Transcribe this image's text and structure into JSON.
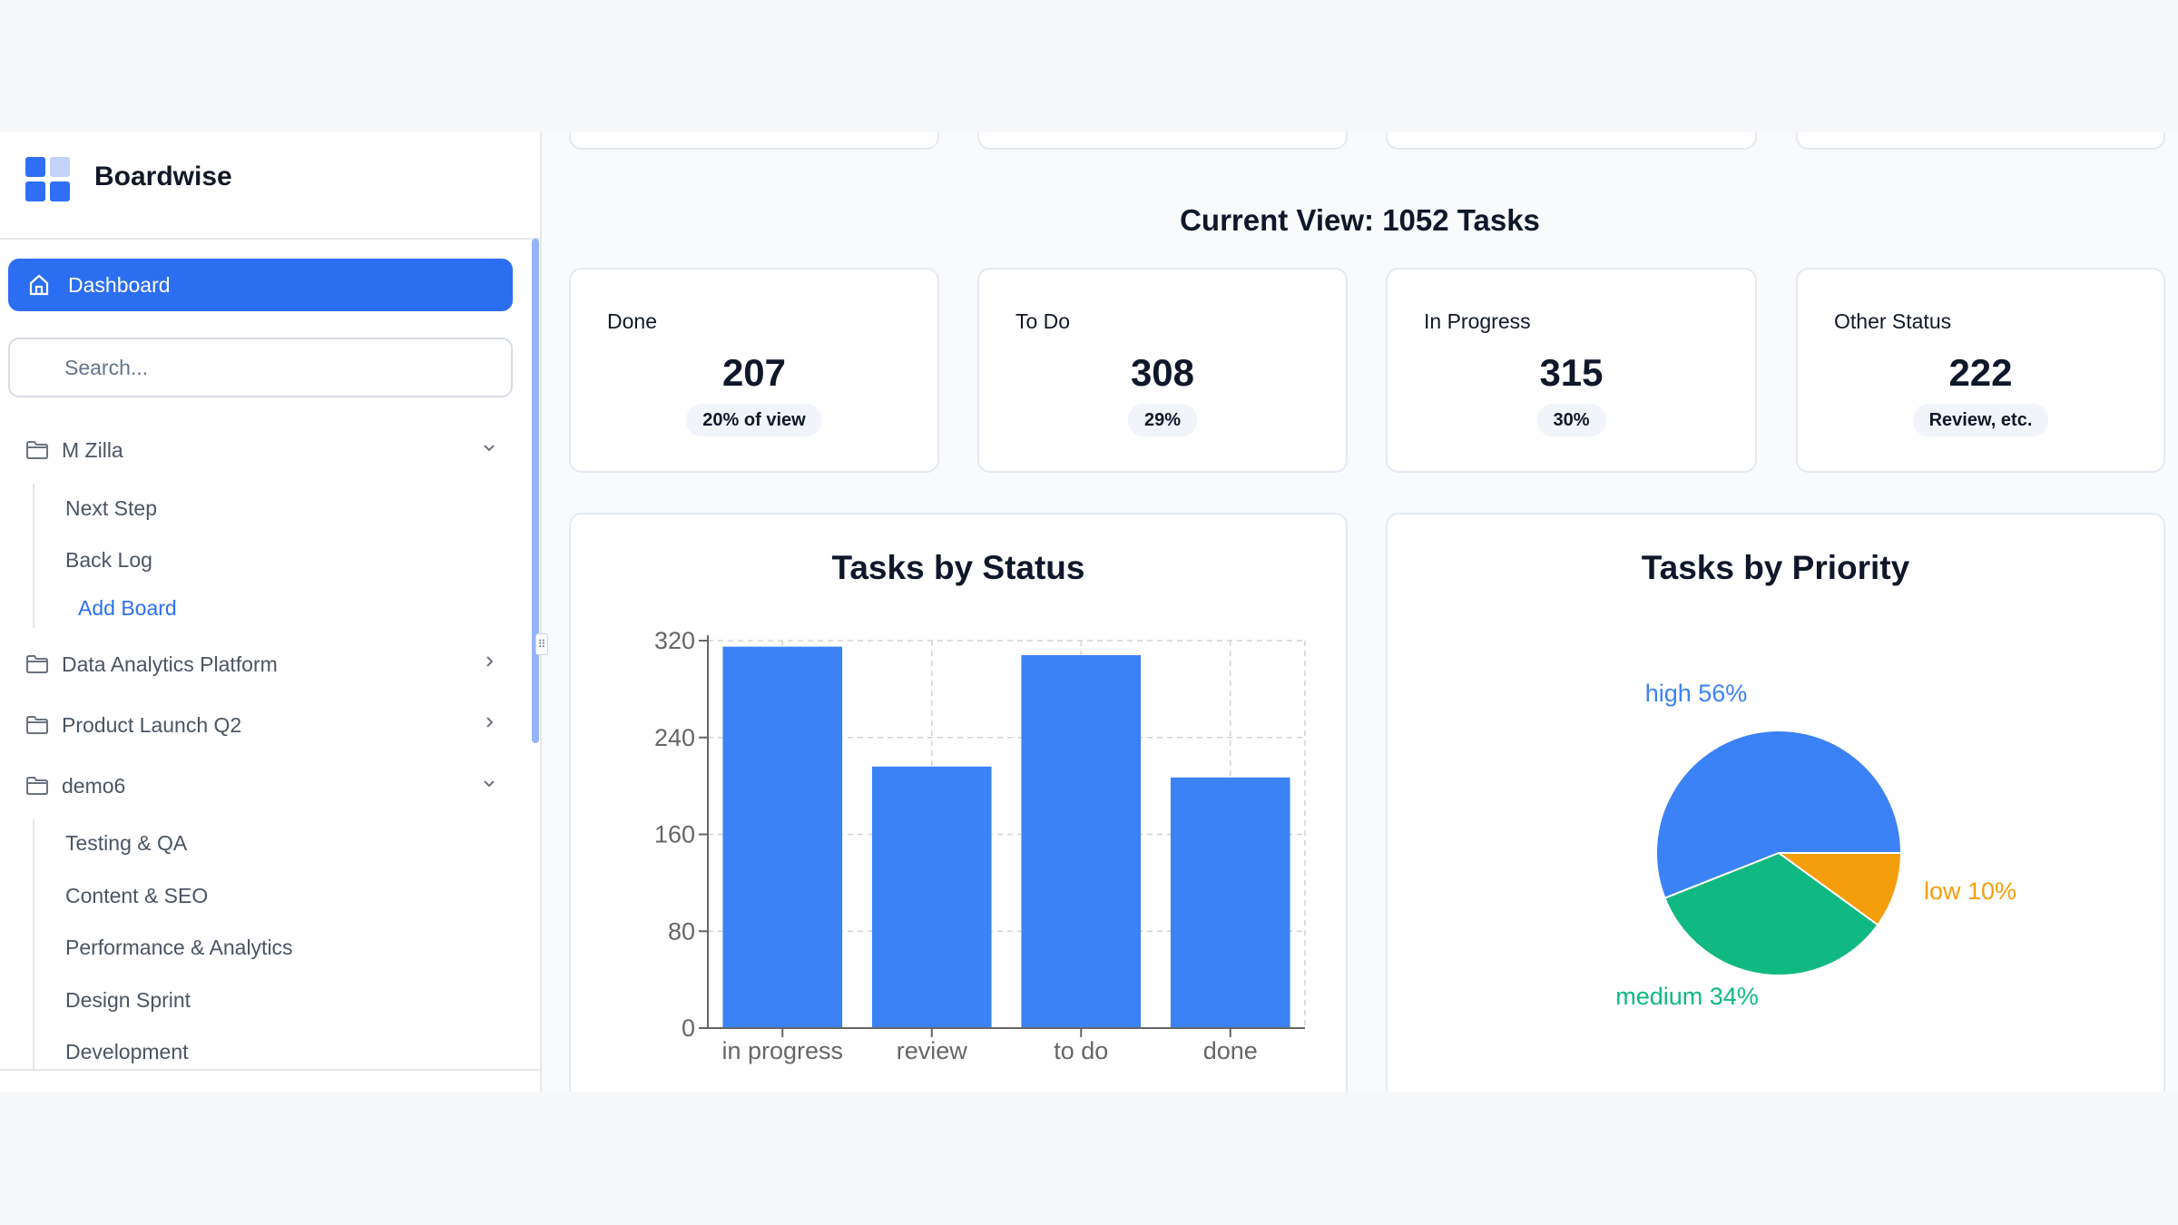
{
  "app": {
    "name": "Boardwise"
  },
  "sidebar": {
    "dashboard_label": "Dashboard",
    "search_placeholder": "Search...",
    "groups": [
      {
        "label": "M Zilla",
        "expanded": true,
        "items": [
          "Next Step",
          "Back Log"
        ],
        "add_label": "Add Board"
      },
      {
        "label": "Data Analytics Platform",
        "expanded": false
      },
      {
        "label": "Product Launch Q2",
        "expanded": false
      },
      {
        "label": "demo6",
        "expanded": true,
        "items": [
          "Testing & QA",
          "Content & SEO",
          "Performance & Analytics",
          "Design Sprint",
          "Development"
        ]
      }
    ]
  },
  "main": {
    "heading": "Current View: 1052 Tasks",
    "stats": [
      {
        "label": "Done",
        "value": "207",
        "badge": "20% of view"
      },
      {
        "label": "To Do",
        "value": "308",
        "badge": "29%"
      },
      {
        "label": "In Progress",
        "value": "315",
        "badge": "30%"
      },
      {
        "label": "Other Status",
        "value": "222",
        "badge": "Review, etc."
      }
    ]
  },
  "colors": {
    "accent": "#2c6ef2",
    "bar": "#3b82f6",
    "high": "#3b82f6",
    "medium": "#10b981",
    "low": "#f59e0b"
  },
  "chart_data": [
    {
      "type": "bar",
      "title": "Tasks by Status",
      "categories": [
        "in progress",
        "review",
        "to do",
        "done"
      ],
      "values": [
        315,
        216,
        308,
        207
      ],
      "yticks": [
        0,
        80,
        160,
        240,
        320
      ],
      "ylim": [
        0,
        320
      ],
      "grid": true
    },
    {
      "type": "pie",
      "title": "Tasks by Priority",
      "slices": [
        {
          "name": "high",
          "percent": 56,
          "label": "high 56%"
        },
        {
          "name": "medium",
          "percent": 34,
          "label": "medium 34%"
        },
        {
          "name": "low",
          "percent": 10,
          "label": "low 10%"
        }
      ]
    }
  ]
}
